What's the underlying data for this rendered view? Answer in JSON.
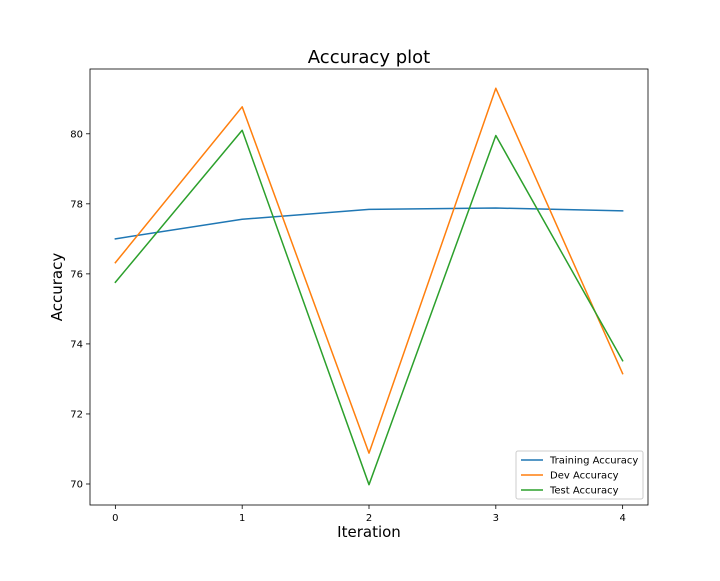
{
  "chart_data": {
    "type": "line",
    "title": "Accuracy plot",
    "xlabel": "Iteration",
    "ylabel": "Accuracy",
    "x": [
      0,
      1,
      2,
      3,
      4
    ],
    "xticks": [
      "0",
      "1",
      "2",
      "3",
      "4"
    ],
    "yticks": [
      "70",
      "72",
      "74",
      "76",
      "78",
      "80"
    ],
    "xlim": [
      -0.2,
      4.2
    ],
    "ylim": [
      69.4,
      81.85
    ],
    "grid": false,
    "legend_position": "lower-right",
    "series": [
      {
        "name": "Training Accuracy",
        "color": "#1f77b4",
        "values": [
          77.0,
          77.56,
          77.84,
          77.88,
          77.8
        ]
      },
      {
        "name": "Dev Accuracy",
        "color": "#ff7f0e",
        "values": [
          76.32,
          80.77,
          70.88,
          81.3,
          73.15
        ]
      },
      {
        "name": "Test Accuracy",
        "color": "#2ca02c",
        "values": [
          75.76,
          80.1,
          69.98,
          79.95,
          73.52
        ]
      }
    ]
  }
}
